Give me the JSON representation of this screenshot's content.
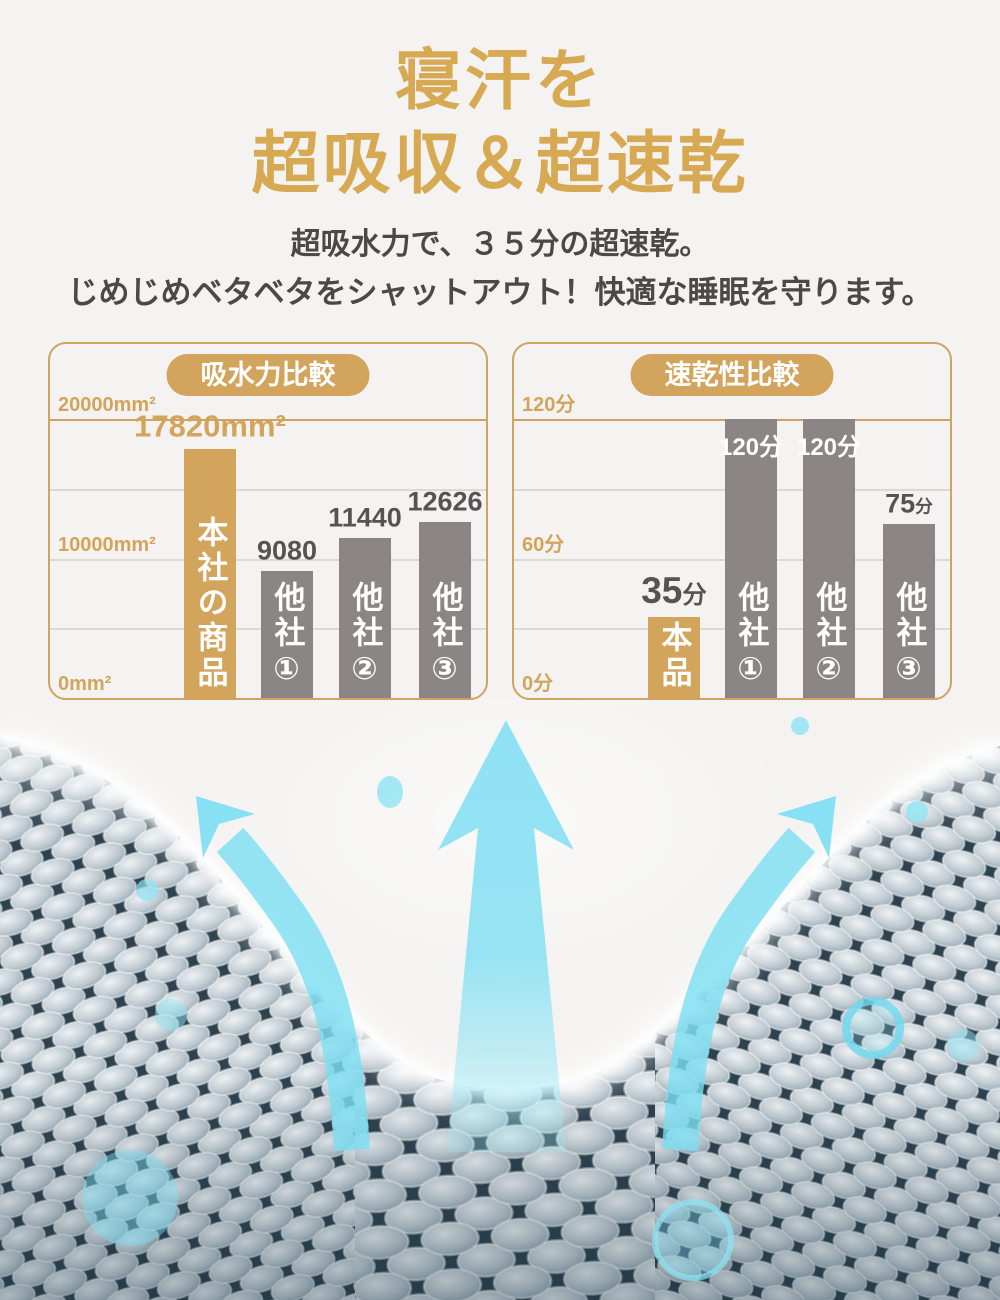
{
  "header": {
    "title_line1": "寝汗を",
    "title_line2": "超吸収＆超速乾",
    "subtitle_line1": "超吸水力で、３５分の超速乾。",
    "subtitle_line2": "じめじめベタベタをシャットアウト！快適な睡眠を守ります。"
  },
  "chart_data": [
    {
      "type": "bar",
      "title": "吸水力比較",
      "unit": "mm²",
      "categories": [
        "本社の商品",
        "他社①",
        "他社②",
        "他社③"
      ],
      "values": [
        17820,
        9080,
        11440,
        12626
      ],
      "ylim": [
        0,
        20000
      ],
      "grid": true,
      "gridlines": [
        20000,
        15000,
        10000,
        5000
      ],
      "yticks": [
        {
          "label": "20000mm²",
          "value": 20000
        },
        {
          "label": "10000mm²",
          "value": 10000
        },
        {
          "label": "0mm²",
          "value": 0
        }
      ],
      "bars": [
        {
          "name": "本社の商品",
          "value": 17820,
          "label_num": "17820mm²",
          "label_unit": "",
          "color": "gold",
          "label_style": "gold"
        },
        {
          "name": "他社①",
          "value": 9080,
          "label_num": "9080",
          "label_unit": "",
          "color": "gray",
          "label_style": "dark"
        },
        {
          "name": "他社②",
          "value": 11440,
          "label_num": "11440",
          "label_unit": "",
          "color": "gray",
          "label_style": "dark"
        },
        {
          "name": "他社③",
          "value": 12626,
          "label_num": "12626",
          "label_unit": "",
          "color": "gray",
          "label_style": "dark"
        }
      ]
    },
    {
      "type": "bar",
      "title": "速乾性比較",
      "unit": "分",
      "categories": [
        "本品",
        "他社①",
        "他社②",
        "他社③"
      ],
      "values": [
        35,
        120,
        120,
        75
      ],
      "ylim": [
        0,
        120
      ],
      "grid": true,
      "gridlines": [
        120,
        90,
        60,
        30
      ],
      "yticks": [
        {
          "label": "120分",
          "value": 120
        },
        {
          "label": "60分",
          "value": 60
        },
        {
          "label": "0分",
          "value": 0
        }
      ],
      "bars": [
        {
          "name": "本品",
          "value": 35,
          "label_num": "35",
          "label_unit": "分",
          "color": "gold",
          "label_style": "dark-big"
        },
        {
          "name": "他社①",
          "value": 120,
          "label_num": "120分",
          "label_unit": "",
          "color": "gray",
          "label_style": "inside-white"
        },
        {
          "name": "他社②",
          "value": 120,
          "label_num": "120分",
          "label_unit": "",
          "color": "gray",
          "label_style": "inside-white"
        },
        {
          "name": "他社③",
          "value": 75,
          "label_num": "75",
          "label_unit": "分",
          "color": "gray",
          "label_style": "dark"
        }
      ]
    }
  ],
  "footer_graphic": {
    "type": "photo",
    "subject": "mesh-fabric-with-breathability-arrows-and-water-droplets",
    "icons": [
      "up-arrow-icon",
      "curved-arrow-left-icon",
      "curved-arrow-right-icon",
      "water-droplet-icon"
    ],
    "arrow_color": "#7bdef3",
    "droplet_color": "#8fe4f4",
    "mesh_dark": "#2e414e",
    "mesh_light": "#c2ccd3"
  },
  "colors": {
    "page_bg": "#f4f3f1",
    "gold": "#d2a45c",
    "gold_title": "#d6a952",
    "gray_bar": "#8b8685",
    "text_dark": "#4b4846",
    "value_text": "#575350",
    "grid_light": "#dcd8d2",
    "grid_gold": "#cda45e",
    "panel_border": "#cfa45e"
  }
}
